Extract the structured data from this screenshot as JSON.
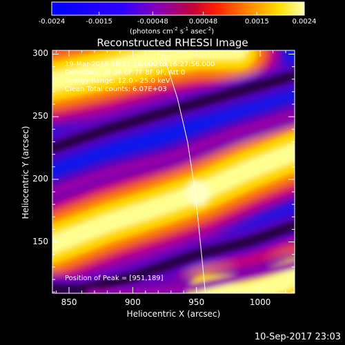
{
  "colorbar": {
    "ticks": [
      "-0.0024",
      "-0.0015",
      "-0.00048",
      "0.00048",
      "0.0015",
      "0.0024"
    ],
    "tick_values": [
      -0.0024,
      -0.0015,
      -0.00048,
      0.00048,
      0.0015,
      0.0024
    ],
    "units": "(photons cm",
    "units_exp1": "-2",
    "units_mid": " s",
    "units_exp2": "-1",
    "units_end": " asec",
    "units_exp3": "-2",
    "units_close": ")",
    "range": [
      -0.0024,
      0.0024
    ],
    "colormap": [
      "#0000ff",
      "#5a00c8",
      "#9400a0",
      "#d2001a",
      "#ff5a00",
      "#ffc000",
      "#ffff96"
    ]
  },
  "plot": {
    "title": "Reconstructed RHESSI Image",
    "info_lines": [
      "19-Mar-2015 16:17:56.000 to 16:27:56.000",
      "Detectors: 3F 5F 6F 7F 8F 9F, Att 0",
      "Energy Range: 12.0 - 25.0 keV",
      "Clean     Total counts: 6.07E+03"
    ],
    "peak_text": "Position of Peak = [951,189]"
  },
  "footer": {
    "timestamp": "10-Sep-2017 23:03"
  },
  "chart_data": {
    "type": "heatmap",
    "title": "Reconstructed RHESSI Image",
    "xlabel": "Heliocentric X (arcsec)",
    "ylabel": "Heliocentric Y (arcsec)",
    "xlim": [
      837,
      1027
    ],
    "ylim": [
      109,
      303
    ],
    "xticks": [
      "850",
      "900",
      "950",
      "1000"
    ],
    "xtick_values": [
      850,
      900,
      950,
      1000
    ],
    "yticks": [
      "150",
      "200",
      "250",
      "300"
    ],
    "ytick_values": [
      150,
      200,
      250,
      300
    ],
    "peak": {
      "x": 951,
      "y": 189
    },
    "limb_curve": [
      [
        923,
        303
      ],
      [
        935,
        265
      ],
      [
        943,
        230
      ],
      [
        949,
        190
      ],
      [
        953,
        150
      ],
      [
        957,
        109
      ]
    ],
    "bands": [
      {
        "level": "high",
        "points": [
          [
            837,
            148
          ],
          [
            880,
            165
          ],
          [
            920,
            178
          ],
          [
            951,
            189
          ],
          [
            990,
            207
          ],
          [
            1027,
            222
          ]
        ]
      },
      {
        "level": "high",
        "points": [
          [
            837,
            278
          ],
          [
            870,
            285
          ],
          [
            920,
            298
          ],
          [
            950,
            303
          ]
        ]
      },
      {
        "level": "high",
        "points": [
          [
            990,
            109
          ],
          [
            1010,
            115
          ],
          [
            1027,
            122
          ]
        ]
      },
      {
        "level": "low",
        "points": [
          [
            837,
            225
          ],
          [
            880,
            240
          ],
          [
            930,
            255
          ],
          [
            975,
            268
          ],
          [
            1027,
            283
          ]
        ]
      },
      {
        "level": "low",
        "points": [
          [
            860,
            112
          ],
          [
            900,
            122
          ],
          [
            950,
            140
          ],
          [
            990,
            150
          ],
          [
            1027,
            163
          ]
        ]
      },
      {
        "level": "mid",
        "points": [
          [
            837,
            190
          ],
          [
            880,
            205
          ],
          [
            930,
            218
          ],
          [
            980,
            237
          ],
          [
            1027,
            252
          ]
        ]
      },
      {
        "level": "mid",
        "points": [
          [
            900,
            109
          ],
          [
            950,
            114
          ],
          [
            1000,
            125
          ],
          [
            1027,
            132
          ]
        ]
      }
    ]
  }
}
